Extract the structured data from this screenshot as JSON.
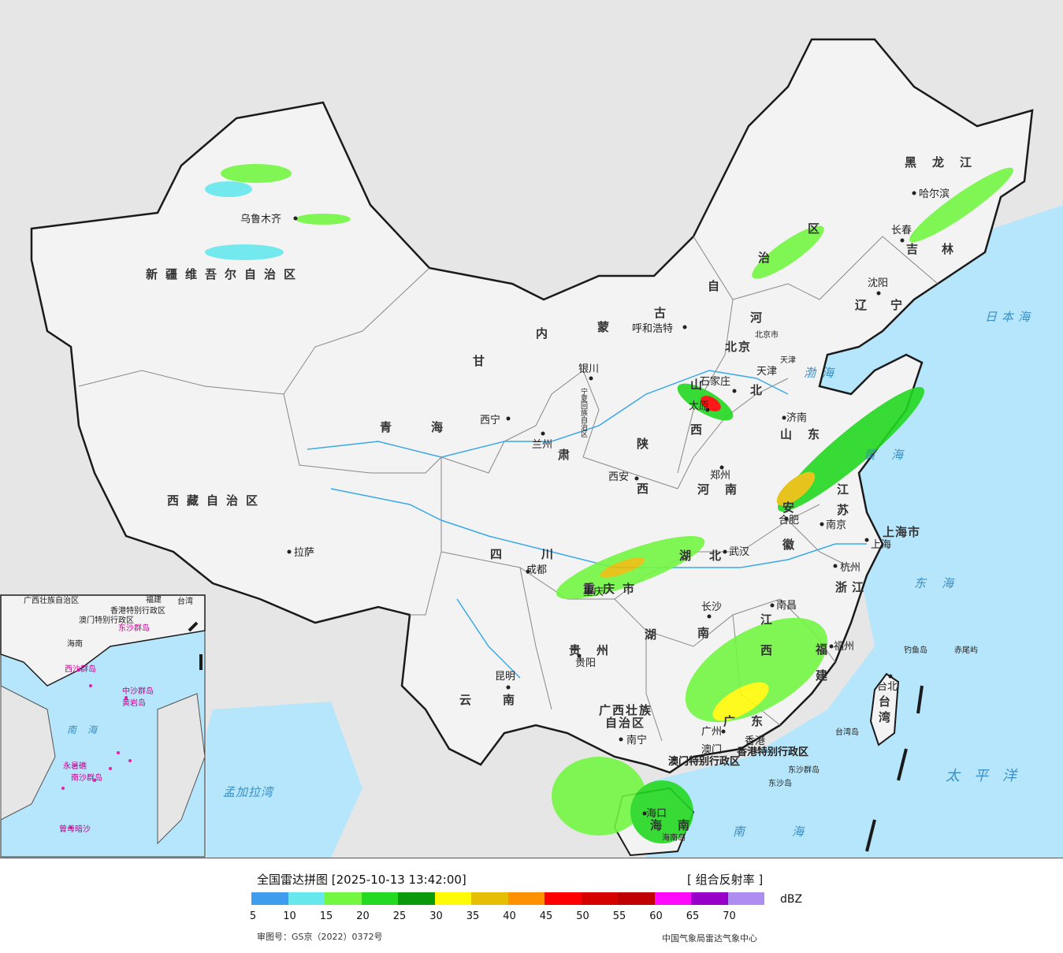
{
  "labels": {
    "provinces": [
      {
        "key": "xinjiang",
        "text": "新疆维吾尔自治区"
      },
      {
        "key": "xizang",
        "text": "西藏自治区"
      },
      {
        "key": "qinghai",
        "text": "青海"
      },
      {
        "key": "gansu",
        "text": "甘"
      },
      {
        "key": "neimenggu_1",
        "text": "内"
      },
      {
        "key": "neimenggu_2",
        "text": "蒙"
      },
      {
        "key": "neimenggu_3",
        "text": "古"
      },
      {
        "key": "neimenggu_4",
        "text": "自"
      },
      {
        "key": "neimenggu_5",
        "text": "治"
      },
      {
        "key": "neimenggu_6",
        "text": "区"
      },
      {
        "key": "heilongjiang",
        "text": "黑龙江"
      },
      {
        "key": "jilin",
        "text": "吉林"
      },
      {
        "key": "liaoning",
        "text": "辽宁"
      },
      {
        "key": "hebei_1",
        "text": "河"
      },
      {
        "key": "hebei_2",
        "text": "北"
      },
      {
        "key": "shanxi_1",
        "text": "山"
      },
      {
        "key": "shanxi_2",
        "text": "西"
      },
      {
        "key": "shandong",
        "text": "山东"
      },
      {
        "key": "henan",
        "text": "河南"
      },
      {
        "key": "shaanxi_1",
        "text": "陕"
      },
      {
        "key": "shaanxi_2",
        "text": "西"
      },
      {
        "key": "ningxia",
        "text": "宁夏回族自治区"
      },
      {
        "key": "gansu_2",
        "text": "肃"
      },
      {
        "key": "sichuan",
        "text": "四川"
      },
      {
        "key": "chongqing",
        "text": "重庆市"
      },
      {
        "key": "hubei_1",
        "text": "湖"
      },
      {
        "key": "hubei_2",
        "text": "北"
      },
      {
        "key": "hunan_1",
        "text": "湖"
      },
      {
        "key": "hunan_2",
        "text": "南"
      },
      {
        "key": "guizhou",
        "text": "贵州"
      },
      {
        "key": "yunnan",
        "text": "云南"
      },
      {
        "key": "guangxi_1",
        "text": "广西壮族"
      },
      {
        "key": "guangxi_2",
        "text": "自治区"
      },
      {
        "key": "guangdong",
        "text": "广东"
      },
      {
        "key": "jiangxi_1",
        "text": "江"
      },
      {
        "key": "jiangxi_2",
        "text": "西"
      },
      {
        "key": "fujian_1",
        "text": "福"
      },
      {
        "key": "fujian_2",
        "text": "建"
      },
      {
        "key": "zhejiang",
        "text": "浙江"
      },
      {
        "key": "anhui_1",
        "text": "安"
      },
      {
        "key": "anhui_2",
        "text": "徽"
      },
      {
        "key": "jiangsu_1",
        "text": "江"
      },
      {
        "key": "jiangsu_2",
        "text": "苏"
      },
      {
        "key": "shanghai",
        "text": "上海市"
      },
      {
        "key": "taiwan_1",
        "text": "台"
      },
      {
        "key": "taiwan_2",
        "text": "湾"
      },
      {
        "key": "hainan_1",
        "text": "海"
      },
      {
        "key": "hainan_2",
        "text": "南"
      },
      {
        "key": "hk",
        "text": "香港特别行政区"
      },
      {
        "key": "macao",
        "text": "澳门特别行政区"
      },
      {
        "key": "beijing",
        "text": "北京"
      },
      {
        "key": "tianjin",
        "text": "天津"
      }
    ],
    "cities": [
      {
        "key": "urumqi",
        "text": "乌鲁木齐"
      },
      {
        "key": "lhasa",
        "text": "拉萨"
      },
      {
        "key": "xining",
        "text": "西宁"
      },
      {
        "key": "lanzhou",
        "text": "兰州"
      },
      {
        "key": "yinchuan",
        "text": "银川"
      },
      {
        "key": "hohhot",
        "text": "呼和浩特"
      },
      {
        "key": "harbin",
        "text": "哈尔滨"
      },
      {
        "key": "changchun",
        "text": "长春"
      },
      {
        "key": "shenyang",
        "text": "沈阳"
      },
      {
        "key": "beijing_city",
        "text": "北京市"
      },
      {
        "key": "tianjin_city",
        "text": "天津"
      },
      {
        "key": "shijiazhuang",
        "text": "石家庄"
      },
      {
        "key": "taiyuan",
        "text": "太原"
      },
      {
        "key": "jinan",
        "text": "济南"
      },
      {
        "key": "zhengzhou",
        "text": "郑州"
      },
      {
        "key": "xian",
        "text": "西安"
      },
      {
        "key": "chengdu",
        "text": "成都"
      },
      {
        "key": "chongqing_city",
        "text": "重庆"
      },
      {
        "key": "wuhan",
        "text": "武汉"
      },
      {
        "key": "hefei",
        "text": "合肥"
      },
      {
        "key": "nanjing",
        "text": "南京"
      },
      {
        "key": "shanghai_city",
        "text": "上海"
      },
      {
        "key": "hangzhou",
        "text": "杭州"
      },
      {
        "key": "nanchang",
        "text": "南昌"
      },
      {
        "key": "changsha",
        "text": "长沙"
      },
      {
        "key": "fuzhou",
        "text": "福州"
      },
      {
        "key": "guiyang",
        "text": "贵阳"
      },
      {
        "key": "kunming",
        "text": "昆明"
      },
      {
        "key": "nanning",
        "text": "南宁"
      },
      {
        "key": "guangzhou",
        "text": "广州"
      },
      {
        "key": "macao_city",
        "text": "澳门"
      },
      {
        "key": "hongkong_city",
        "text": "香港"
      },
      {
        "key": "haikou",
        "text": "海口"
      },
      {
        "key": "taipei",
        "text": "台北"
      },
      {
        "key": "diaoyu",
        "text": "钓鱼岛"
      },
      {
        "key": "chiwei",
        "text": "赤尾屿"
      },
      {
        "key": "taiwan_island",
        "text": "台湾岛"
      },
      {
        "key": "dongsha_islands",
        "text": "东沙群岛"
      },
      {
        "key": "dongsha_island",
        "text": "东沙岛"
      },
      {
        "key": "hainan_island",
        "text": "海南岛"
      }
    ],
    "seas": [
      {
        "key": "japan_sea",
        "text": "日本海"
      },
      {
        "key": "bohai",
        "text": "渤海"
      },
      {
        "key": "yellow_sea",
        "text": "黄海"
      },
      {
        "key": "east_sea",
        "text": "东海"
      },
      {
        "key": "pacific",
        "text": "太平洋"
      },
      {
        "key": "south_sea",
        "text": "南海"
      },
      {
        "key": "bengal",
        "text": "孟加拉湾"
      }
    ],
    "inset": [
      {
        "key": "inset_south_sea",
        "text": "南海"
      },
      {
        "key": "inset_xisha",
        "text": "西沙群岛"
      },
      {
        "key": "inset_zhongsha",
        "text": "中沙群岛"
      },
      {
        "key": "inset_huangyan",
        "text": "黄岩岛"
      },
      {
        "key": "inset_nansha",
        "text": "南沙群岛"
      },
      {
        "key": "inset_yongshu",
        "text": "永暑礁"
      },
      {
        "key": "inset_zengmu",
        "text": "曾母暗沙"
      },
      {
        "key": "inset_dongsha",
        "text": "东沙群岛"
      },
      {
        "key": "inset_guangxi",
        "text": "广西壮族自治区"
      },
      {
        "key": "inset_hk",
        "text": "香港特别行政区"
      },
      {
        "key": "inset_macao",
        "text": "澳门特别行政区"
      },
      {
        "key": "inset_taiwan",
        "text": "台湾"
      },
      {
        "key": "inset_fujian",
        "text": "福建"
      },
      {
        "key": "inset_hainan",
        "text": "海南"
      }
    ]
  },
  "legend": {
    "title": "全国雷达拼图 [2025-10-13 13:42:00]",
    "product": "[ 组合反射率 ]",
    "unit": "dBZ",
    "colors": [
      "#3f9df0",
      "#66e8ec",
      "#73f743",
      "#23d921",
      "#0b9a0c",
      "#fffb07",
      "#e6bf05",
      "#ff9100",
      "#ff0000",
      "#d60000",
      "#c00000",
      "#ff0afa",
      "#9600c8",
      "#ad8ef0"
    ],
    "ticks": [
      "5",
      "10",
      "15",
      "20",
      "25",
      "30",
      "35",
      "40",
      "45",
      "50",
      "55",
      "60",
      "65",
      "70"
    ],
    "approval": "审图号：GS京（2022）0372号",
    "agency": "中国气象局雷达气象中心"
  },
  "map_colors": {
    "land": "#f2f2f2",
    "neighbor": "#e6e6e6",
    "sea": "#b6e6fb",
    "border": "#1a1a1a",
    "province_line": "#888888",
    "river": "#3aa9e6"
  }
}
